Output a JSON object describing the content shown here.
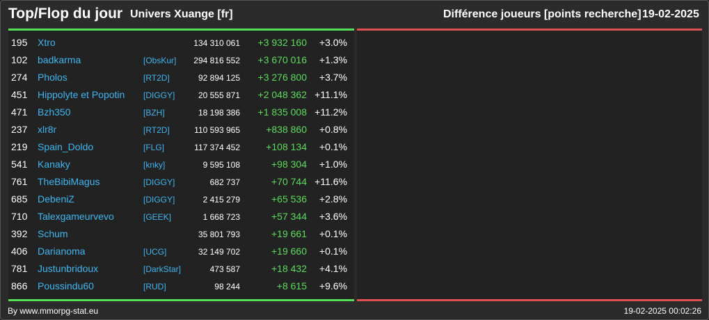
{
  "header": {
    "title": "Top/Flop du jour",
    "universe": "Univers Xuange [fr]",
    "metric": "Différence joueurs [points recherche]",
    "date": "19-02-2025"
  },
  "colors": {
    "accent_green": "#55e055",
    "accent_red": "#e05050",
    "link_blue": "#3fb6f0",
    "gain_green": "#5cdc5c"
  },
  "top_rows": [
    {
      "rank": "195",
      "player": "Xtro",
      "alliance": "",
      "points": "134 310 061",
      "diff": "+3 932 160",
      "pct": "+3.0%"
    },
    {
      "rank": "102",
      "player": "badkarma",
      "alliance": "[ObsKur]",
      "points": "294 816 552",
      "diff": "+3 670 016",
      "pct": "+1.3%"
    },
    {
      "rank": "274",
      "player": "Pholos",
      "alliance": "[RT2D]",
      "points": "92 894 125",
      "diff": "+3 276 800",
      "pct": "+3.7%"
    },
    {
      "rank": "451",
      "player": "Hippolyte et Popotin",
      "alliance": "[DIGGY]",
      "points": "20 555 871",
      "diff": "+2 048 362",
      "pct": "+11.1%"
    },
    {
      "rank": "471",
      "player": "Bzh350",
      "alliance": "[BZH]",
      "points": "18 198 386",
      "diff": "+1 835 008",
      "pct": "+11.2%"
    },
    {
      "rank": "237",
      "player": "xlr8r",
      "alliance": "[RT2D]",
      "points": "110 593 965",
      "diff": "+838 860",
      "pct": "+0.8%"
    },
    {
      "rank": "219",
      "player": "Spain_Doldo",
      "alliance": "[FLG]",
      "points": "117 374 452",
      "diff": "+108 134",
      "pct": "+0.1%"
    },
    {
      "rank": "541",
      "player": "Kanaky",
      "alliance": "[knky]",
      "points": "9 595 108",
      "diff": "+98 304",
      "pct": "+1.0%"
    },
    {
      "rank": "761",
      "player": "TheBibiMagus",
      "alliance": "[DIGGY]",
      "points": "682 737",
      "diff": "+70 744",
      "pct": "+11.6%"
    },
    {
      "rank": "685",
      "player": "DebeniZ",
      "alliance": "[DIGGY]",
      "points": "2 415 279",
      "diff": "+65 536",
      "pct": "+2.8%"
    },
    {
      "rank": "710",
      "player": "Talexgameurvevo",
      "alliance": "[GEEK]",
      "points": "1 668 723",
      "diff": "+57 344",
      "pct": "+3.6%"
    },
    {
      "rank": "392",
      "player": "Schum",
      "alliance": "",
      "points": "35 801 793",
      "diff": "+19 661",
      "pct": "+0.1%"
    },
    {
      "rank": "406",
      "player": "Darianoma",
      "alliance": "[UCG]",
      "points": "32 149 702",
      "diff": "+19 660",
      "pct": "+0.1%"
    },
    {
      "rank": "781",
      "player": "Justunbridoux",
      "alliance": "[DarkStar]",
      "points": "473 587",
      "diff": "+18 432",
      "pct": "+4.1%"
    },
    {
      "rank": "866",
      "player": "Poussindu60",
      "alliance": "[RUD]",
      "points": "98 244",
      "diff": "+8 615",
      "pct": "+9.6%"
    }
  ],
  "footer": {
    "credit": "By www.mmorpg-stat.eu",
    "timestamp": "19-02-2025 00:02:26"
  }
}
